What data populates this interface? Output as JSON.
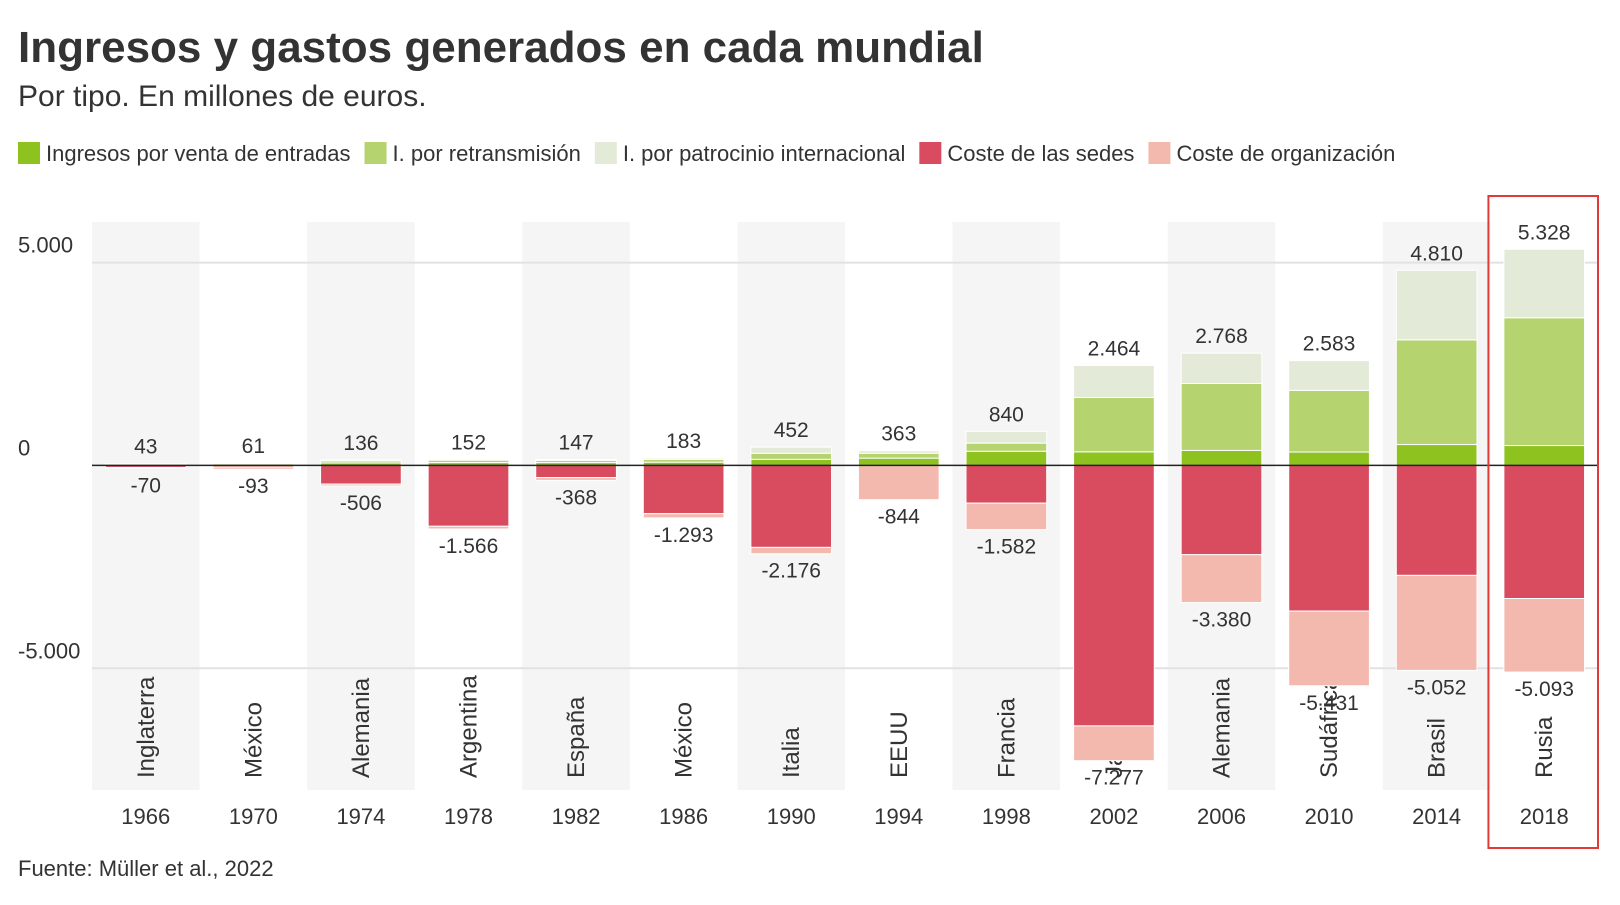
{
  "chart_data": {
    "type": "bar",
    "title": "Ingresos y gastos generados en cada mundial",
    "subtitle": "Por tipo. En millones de euros.",
    "source": "Fuente: Müller et al., 2022",
    "categories": [
      "1966",
      "1970",
      "1974",
      "1978",
      "1982",
      "1986",
      "1990",
      "1994",
      "1998",
      "2002",
      "2006",
      "2010",
      "2014",
      "2018"
    ],
    "hosts": [
      "Inglaterra",
      "México",
      "Alemania",
      "Argentina",
      "España",
      "México",
      "Italia",
      "EEUU",
      "Francia",
      "Japón",
      "Alemania",
      "Sudáfrica",
      "Brasil",
      "Rusia"
    ],
    "series": [
      {
        "name": "Ingresos por venta de entradas",
        "color": "#8dc21f",
        "values": [
          30,
          40,
          60,
          70,
          70,
          80,
          150,
          180,
          350,
          335,
          370,
          330,
          515,
          490
        ]
      },
      {
        "name": "I. por retransmisión",
        "color": "#b5d36f",
        "values": [
          5,
          15,
          50,
          60,
          55,
          70,
          150,
          120,
          200,
          1340,
          1650,
          1520,
          2580,
          3150
        ]
      },
      {
        "name": "I. por patrocinio internacional",
        "color": "#e4ead8",
        "values": [
          8,
          6,
          26,
          22,
          22,
          33,
          152,
          63,
          290,
          789,
          748,
          733,
          1715,
          1688
        ]
      },
      {
        "name": "Coste de las sedes",
        "color": "#d94c60",
        "values": [
          -50,
          -40,
          -460,
          -1500,
          -300,
          -1190,
          -2020,
          0,
          -930,
          -6420,
          -2200,
          -3590,
          -2710,
          -3280
        ]
      },
      {
        "name": "Coste de organización",
        "color": "#f4b9ae",
        "values": [
          -20,
          -53,
          -46,
          -66,
          -68,
          -103,
          -156,
          -844,
          -652,
          -857,
          -1180,
          -1841,
          -2342,
          -1813
        ]
      }
    ],
    "positive_totals": {
      "values": [
        43,
        61,
        136,
        152,
        147,
        183,
        452,
        363,
        840,
        2464,
        2768,
        2583,
        4810,
        5328
      ],
      "value_labels": [
        "43",
        "61",
        "136",
        "152",
        "147",
        "183",
        "452",
        "363",
        "840",
        "2.464",
        "2.768",
        "2.583",
        "4.810",
        "5.328"
      ]
    },
    "negative_totals": {
      "values": [
        -70,
        -93,
        -506,
        -1566,
        -368,
        -1293,
        -2176,
        -844,
        -1582,
        -7277,
        -3380,
        -5431,
        -5052,
        -5093
      ],
      "value_labels": [
        "-70",
        "-93",
        "-506",
        "-1.566",
        "-368",
        "-1.293",
        "-2.176",
        "-844",
        "-1.582",
        "-7.277",
        "-3.380",
        "-5.431",
        "-5.052",
        "-5.093"
      ]
    },
    "ylim": [
      -8000,
      6000
    ],
    "yticks": [
      {
        "value": -5000,
        "label": "-5.000"
      },
      0,
      {
        "value": 5000,
        "label": "5.000"
      }
    ],
    "grid": true
  }
}
